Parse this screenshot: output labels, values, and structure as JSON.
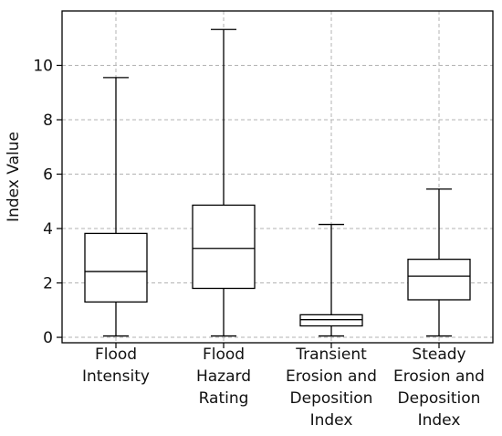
{
  "chart_data": {
    "type": "box",
    "title": "",
    "xlabel": "",
    "ylabel": "Index Value",
    "ylim": [
      -0.2,
      12
    ],
    "yticks": [
      0,
      2,
      4,
      6,
      8,
      10
    ],
    "grid": true,
    "categories": [
      [
        "Flood",
        "Intensity"
      ],
      [
        "Flood",
        "Hazard",
        "Rating"
      ],
      [
        "Transient",
        "Erosion and",
        "Deposition",
        "Index"
      ],
      [
        "Steady",
        "Erosion and",
        "Deposition",
        "Index"
      ]
    ],
    "boxes": [
      {
        "whisker_low": 0.05,
        "q1": 1.3,
        "median": 2.42,
        "q3": 3.82,
        "whisker_high": 9.55
      },
      {
        "whisker_low": 0.05,
        "q1": 1.8,
        "median": 3.27,
        "q3": 4.86,
        "whisker_high": 11.32
      },
      {
        "whisker_low": 0.05,
        "q1": 0.42,
        "median": 0.65,
        "q3": 0.83,
        "whisker_high": 4.15
      },
      {
        "whisker_low": 0.05,
        "q1": 1.38,
        "median": 2.25,
        "q3": 2.87,
        "whisker_high": 5.45
      }
    ],
    "colors": {
      "box": "#000000",
      "grid": "#b3b3b3",
      "axis": "#000000"
    }
  }
}
